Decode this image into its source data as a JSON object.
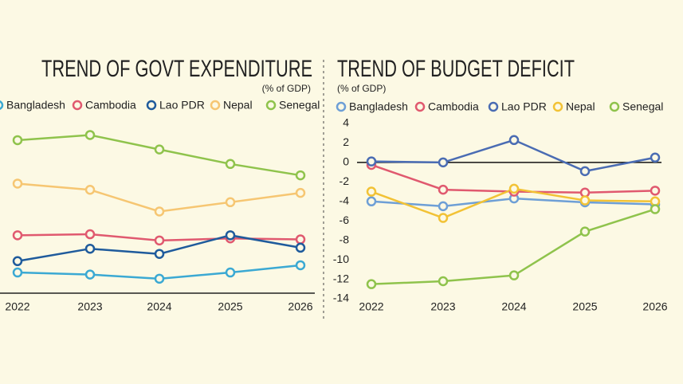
{
  "chart_data": [
    {
      "type": "line",
      "title": "TREND OF GOVT EXPENDITURE",
      "subtitle": "(% of GDP)",
      "categories": [
        "2022",
        "2023",
        "2024",
        "2025",
        "2026"
      ],
      "ylim": [
        6.8,
        23.6
      ],
      "series": [
        {
          "name": "Bangladesh",
          "color": "#3ba9d3",
          "values": [
            8.8,
            8.6,
            8.2,
            8.8,
            9.5
          ]
        },
        {
          "name": "Cambodia",
          "color": "#e0596f",
          "values": [
            12.4,
            12.5,
            11.9,
            12.1,
            12.0
          ]
        },
        {
          "name": "Lao PDR",
          "color": "#1f5b9c",
          "values": [
            9.9,
            11.1,
            10.6,
            12.4,
            11.2
          ]
        },
        {
          "name": "Nepal",
          "color": "#f6c672",
          "values": [
            17.4,
            16.8,
            14.7,
            15.6,
            16.5
          ]
        },
        {
          "name": "Senegal",
          "color": "#8fc34c",
          "values": [
            21.6,
            22.1,
            20.7,
            19.3,
            18.2
          ]
        }
      ]
    },
    {
      "type": "line",
      "title": "TREND OF BUDGET DEFICIT",
      "subtitle": "(% of GDP)",
      "categories": [
        "2022",
        "2023",
        "2024",
        "2025",
        "2026"
      ],
      "ylim": [
        -14,
        4
      ],
      "yticks": [
        -14,
        -12,
        -10,
        -8,
        -6,
        -4,
        -2,
        0,
        2,
        4
      ],
      "series": [
        {
          "name": "Bangladesh",
          "color": "#6e9fd6",
          "values": [
            -4.0,
            -4.5,
            -3.7,
            -4.1,
            -4.3
          ]
        },
        {
          "name": "Cambodia",
          "color": "#e0596f",
          "values": [
            -0.25,
            -2.8,
            -3.0,
            -3.1,
            -2.9
          ]
        },
        {
          "name": "Lao PDR",
          "color": "#4a6cb3",
          "values": [
            0.1,
            0,
            2.3,
            -0.9,
            0.5
          ]
        },
        {
          "name": "Nepal",
          "color": "#f2c235",
          "values": [
            -3.0,
            -5.7,
            -2.7,
            -3.9,
            -4.0
          ]
        },
        {
          "name": "Senegal",
          "color": "#8fc34c",
          "values": [
            -12.5,
            -12.2,
            -11.6,
            -7.1,
            -4.8
          ]
        }
      ]
    }
  ]
}
